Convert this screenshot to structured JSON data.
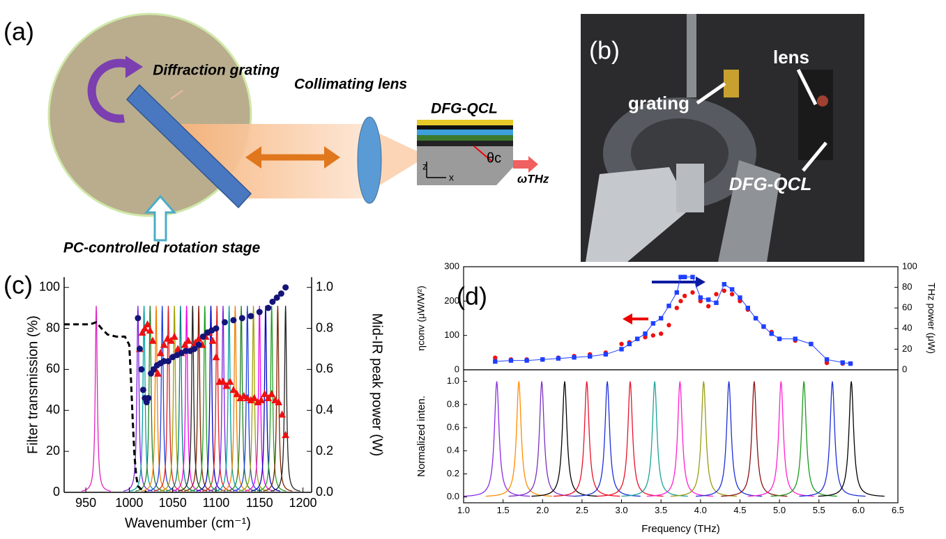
{
  "panel_labels": [
    "(a)",
    "(b)",
    "(c)",
    "(d)"
  ],
  "diagram": {
    "grating": "Diffraction grating",
    "lens": "Collimating lens",
    "device": "DFG-QCL",
    "angle": "θc",
    "output": "ωTHz",
    "stage": "PC-controlled rotation stage",
    "axis_z": "z",
    "axis_x": "x"
  },
  "photo": {
    "lens": "lens",
    "grating": "grating",
    "device": "DFG-QCL"
  },
  "chart_data": [
    {
      "type": "line",
      "xlabel": "Wavenumber (cm⁻¹)",
      "ylabel": "Filter transmission (%)",
      "y2label": "Mid-IR peak power (W)",
      "xlim": [
        925,
        1210
      ],
      "ylim": [
        0,
        105
      ],
      "y2lim": [
        0,
        1.05
      ],
      "xticks": [
        950,
        1000,
        1050,
        1100,
        1150,
        1200
      ],
      "yticks": [
        0,
        20,
        40,
        60,
        80,
        100
      ],
      "y2ticks": [
        {
          "value": 0,
          "label": "0.0"
        },
        0.2,
        0.4,
        0.6,
        0.8,
        {
          "value": 1,
          "label": "1.0"
        }
      ],
      "peaks": {
        "x": [
          962,
          1010,
          1017,
          1024,
          1031,
          1038,
          1045,
          1052,
          1059,
          1066,
          1073,
          1080,
          1087,
          1094,
          1101,
          1108,
          1115,
          1122,
          1129,
          1136,
          1143,
          1150,
          1157,
          1164,
          1171,
          1180
        ],
        "values": [
          91,
          91,
          91,
          91,
          91,
          91,
          91,
          91,
          91,
          91,
          91,
          91,
          91,
          91,
          91,
          91,
          91,
          91,
          91,
          91,
          91,
          91,
          91,
          91,
          91,
          91
        ],
        "colors": [
          "#e020c0",
          "#8020e0",
          "#00a0a0",
          "#208020",
          "#f08000",
          "#2040e0",
          "#e02020",
          "#a0a000",
          "#008080",
          "#f000f0",
          "#202020",
          "#802000",
          "#20a020",
          "#0000c0",
          "#e02020",
          "#8020e0",
          "#00a0a0",
          "#f08000",
          "#208020",
          "#2040e0",
          "#a0a000",
          "#f000f0",
          "#0000c0",
          "#20a020",
          "#802000",
          "#202020"
        ]
      },
      "series": [
        {
          "color": "#000000",
          "line": "dashed",
          "x": [
            925,
            940,
            955,
            962,
            968,
            975,
            985,
            995,
            1000,
            1002,
            1004,
            1006,
            1008,
            1010,
            1015,
            1020
          ],
          "values": [
            82,
            82,
            82,
            83,
            80,
            77,
            76,
            76,
            72,
            55,
            35,
            18,
            8,
            3,
            1,
            0
          ]
        },
        {
          "color": "#ee1111",
          "marker": "triangle",
          "axis": "y2",
          "x": [
            1012,
            1015,
            1018,
            1021,
            1024,
            1027,
            1030,
            1033,
            1036,
            1040,
            1044,
            1048,
            1052,
            1056,
            1060,
            1064,
            1068,
            1072,
            1076,
            1080,
            1084,
            1088,
            1092,
            1096,
            1100,
            1104,
            1108,
            1112,
            1116,
            1120,
            1124,
            1128,
            1132,
            1136,
            1140,
            1144,
            1148,
            1152,
            1156,
            1160,
            1164,
            1168,
            1172,
            1176,
            1180
          ],
          "values": [
            0.7,
            0.78,
            0.8,
            0.82,
            0.79,
            0.74,
            0.6,
            0.58,
            0.68,
            0.72,
            0.75,
            0.74,
            0.76,
            0.7,
            0.68,
            0.72,
            0.74,
            0.7,
            0.73,
            0.75,
            0.72,
            0.76,
            0.78,
            0.74,
            0.66,
            0.54,
            0.54,
            0.52,
            0.54,
            0.5,
            0.48,
            0.46,
            0.47,
            0.46,
            0.45,
            0.46,
            0.44,
            0.45,
            0.48,
            0.46,
            0.48,
            0.45,
            0.44,
            0.38,
            0.28
          ]
        },
        {
          "color": "#141478",
          "marker": "circle",
          "axis": "y2",
          "x": [
            1010,
            1012,
            1014,
            1016,
            1018,
            1020,
            1022,
            1025,
            1028,
            1032,
            1036,
            1040,
            1045,
            1050,
            1055,
            1060,
            1065,
            1070,
            1075,
            1080,
            1085,
            1090,
            1095,
            1100,
            1110,
            1120,
            1130,
            1140,
            1150,
            1160,
            1165,
            1170,
            1175,
            1180
          ],
          "values": [
            0.85,
            0.7,
            0.6,
            0.5,
            0.46,
            0.44,
            0.46,
            0.58,
            0.6,
            0.62,
            0.63,
            0.64,
            0.64,
            0.66,
            0.67,
            0.68,
            0.69,
            0.69,
            0.7,
            0.72,
            0.76,
            0.78,
            0.79,
            0.8,
            0.83,
            0.84,
            0.85,
            0.86,
            0.88,
            0.9,
            0.93,
            0.95,
            0.97,
            1.0
          ]
        }
      ]
    },
    {
      "type": "line",
      "ylabel": "ηconv (μW/W²)",
      "y2label": "THz power (μW)",
      "xlim": [
        1,
        6.5
      ],
      "ylim": [
        0,
        300
      ],
      "y2lim": [
        0,
        100
      ],
      "yticks": [
        0,
        100,
        200,
        300
      ],
      "y2ticks": [
        0,
        20,
        40,
        60,
        80,
        100
      ],
      "series": [
        {
          "color": "#ee1111",
          "marker": "circle",
          "x": [
            1.4,
            1.6,
            1.8,
            2.0,
            2.2,
            2.4,
            2.6,
            2.8,
            3.0,
            3.1,
            3.2,
            3.3,
            3.4,
            3.5,
            3.6,
            3.7,
            3.75,
            3.8,
            3.9,
            4.0,
            4.1,
            4.2,
            4.3,
            4.4,
            4.5,
            4.6,
            4.7,
            4.8,
            4.9,
            5.0,
            5.2,
            5.4,
            5.6,
            5.8,
            5.9
          ],
          "values": [
            35,
            30,
            30,
            30,
            35,
            40,
            45,
            50,
            75,
            80,
            90,
            95,
            100,
            105,
            130,
            180,
            200,
            215,
            225,
            200,
            185,
            220,
            230,
            220,
            200,
            175,
            150,
            125,
            110,
            90,
            85,
            75,
            20,
            18,
            18
          ]
        },
        {
          "color": "#1f3fff",
          "marker": "square",
          "line": "solid",
          "axis": "y2",
          "x": [
            1.4,
            1.6,
            1.8,
            2.0,
            2.2,
            2.4,
            2.6,
            2.8,
            3.0,
            3.1,
            3.2,
            3.3,
            3.4,
            3.5,
            3.6,
            3.7,
            3.75,
            3.8,
            3.9,
            4.0,
            4.1,
            4.2,
            4.3,
            4.4,
            4.5,
            4.6,
            4.7,
            4.8,
            4.9,
            5.0,
            5.2,
            5.4,
            5.6,
            5.8,
            5.9
          ],
          "values": [
            8,
            9,
            9,
            10,
            11,
            12,
            13,
            15,
            20,
            25,
            30,
            35,
            45,
            50,
            62,
            75,
            90,
            90,
            90,
            70,
            68,
            65,
            83,
            78,
            70,
            60,
            50,
            42,
            35,
            30,
            30,
            25,
            10,
            7,
            6
          ]
        }
      ]
    },
    {
      "type": "line",
      "xlabel": "Frequency (THz)",
      "ylabel": "Normalized inten.",
      "xlim": [
        1,
        6.5
      ],
      "ylim": [
        -0.05,
        1.1
      ],
      "xticks": [
        {
          "value": 1,
          "label": "1.0"
        },
        1.5,
        {
          "value": 2,
          "label": "2.0"
        },
        2.5,
        {
          "value": 3,
          "label": "3.0"
        },
        3.5,
        {
          "value": 4,
          "label": "4.0"
        },
        4.5,
        {
          "value": 5,
          "label": "5.0"
        },
        5.5,
        {
          "value": 6,
          "label": "6.0"
        },
        6.5
      ],
      "yticks": [
        {
          "value": 0,
          "label": "0.0"
        },
        0.2,
        0.4,
        0.6,
        0.8,
        {
          "value": 1,
          "label": "1.0"
        }
      ],
      "peaks": {
        "x": [
          1.42,
          1.7,
          1.99,
          2.28,
          2.56,
          2.82,
          3.11,
          3.42,
          3.74,
          4.04,
          4.36,
          4.68,
          5.02,
          5.31,
          5.67,
          5.91
        ],
        "values": [
          1,
          1,
          1,
          1,
          1,
          1,
          1,
          1,
          1,
          1,
          1,
          1,
          1,
          1,
          1,
          1
        ],
        "colors": [
          "#8a2be2",
          "#ff8c00",
          "#7b2fbf",
          "#000000",
          "#e8102a",
          "#1c2fd8",
          "#e8102a",
          "#1aa29a",
          "#ff1fd0",
          "#9a9a10",
          "#1c2fd8",
          "#8b1010",
          "#ff1fd0",
          "#1a9a1a",
          "#1c2fd8",
          "#000000"
        ]
      },
      "series": []
    }
  ]
}
